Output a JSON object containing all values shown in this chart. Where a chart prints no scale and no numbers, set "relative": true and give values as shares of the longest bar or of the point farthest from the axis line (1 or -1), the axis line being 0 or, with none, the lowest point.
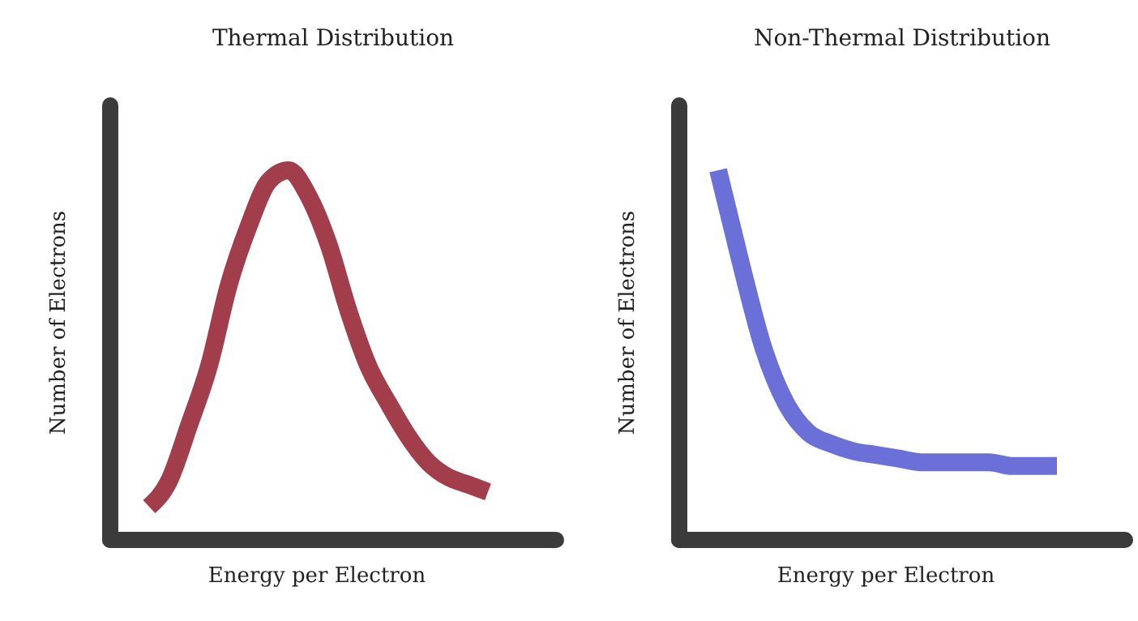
{
  "chart_data": [
    {
      "type": "line",
      "title": "Thermal Distribution",
      "xlabel": "Energy per Electron",
      "ylabel": "Number of Electrons",
      "relative": true,
      "categories": [
        null,
        null,
        null,
        null,
        null,
        null,
        null,
        null,
        null,
        null,
        null,
        null,
        null,
        null,
        null,
        null,
        null,
        null
      ],
      "series": [
        {
          "color": "#a23d4b",
          "values": [
            0.09,
            0.16,
            0.31,
            0.47,
            0.69,
            0.85,
            0.97,
            1.0,
            0.93,
            0.8,
            0.62,
            0.47,
            0.37,
            0.28,
            0.21,
            0.17,
            0.15,
            0.13
          ]
        }
      ]
    },
    {
      "type": "line",
      "title": "Non-Thermal Distribution",
      "xlabel": "Energy per Electron",
      "ylabel": "Number of Electrons",
      "relative": true,
      "categories": [
        null,
        null,
        null,
        null,
        null,
        null,
        null,
        null,
        null,
        null,
        null,
        null,
        null,
        null,
        null,
        null
      ],
      "series": [
        {
          "color": "#6b70d9",
          "values": [
            1.0,
            0.75,
            0.52,
            0.37,
            0.29,
            0.26,
            0.24,
            0.23,
            0.22,
            0.21,
            0.21,
            0.21,
            0.21,
            0.2,
            0.2,
            0.2
          ]
        }
      ]
    }
  ]
}
